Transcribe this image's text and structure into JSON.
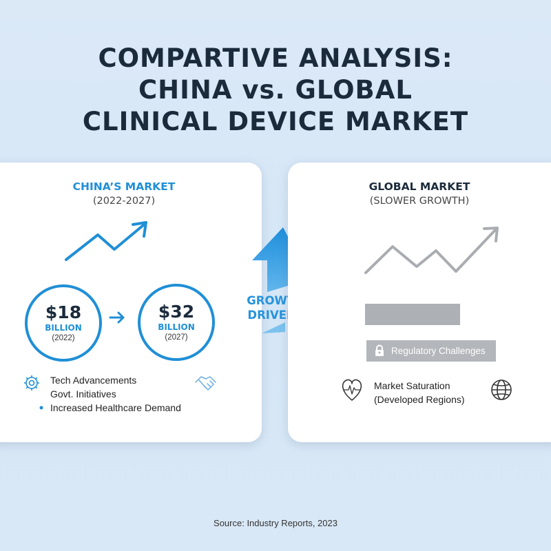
{
  "title": {
    "line1": "COMPARTIVE ANALYSIS:",
    "line2": "CHINA vs. GLOBAL",
    "line3": "CLINICAL DEVICE MARKET"
  },
  "china": {
    "title": "CHINA’S MARKET",
    "subtitle": "(2022-2027)",
    "start": {
      "amount": "$18",
      "unit": "BILLION",
      "year": "(2022)"
    },
    "end": {
      "amount": "$32",
      "unit": "BILLION",
      "year": "(2027)"
    },
    "drivers": [
      "Tech Advancements",
      "Govt. Initiatives",
      "Increased Healthcare Demand"
    ]
  },
  "center": {
    "line1": "GROWTH",
    "line2": "DRIVERS"
  },
  "global": {
    "title": "GLOBAL MARKET",
    "subtitle": "(SLOWER GROWTH)",
    "regulatory": "Regulatory Challenges",
    "saturation_line1": "Market Saturation",
    "saturation_line2": "(Developed Regions)"
  },
  "source": "Source: Industry Reports, 2023",
  "colors": {
    "accent_blue": "#1f8fd6",
    "dark_navy": "#1b2b3c",
    "gray": "#a9acb1",
    "background": "#d8e8f6"
  },
  "icons": [
    "trend-up-arrow-icon",
    "right-arrow-icon",
    "gear-icon",
    "handshake-icon",
    "bullet-dot-icon",
    "up-arrow-icon",
    "lock-icon",
    "heart-monitor-icon",
    "globe-icon"
  ]
}
